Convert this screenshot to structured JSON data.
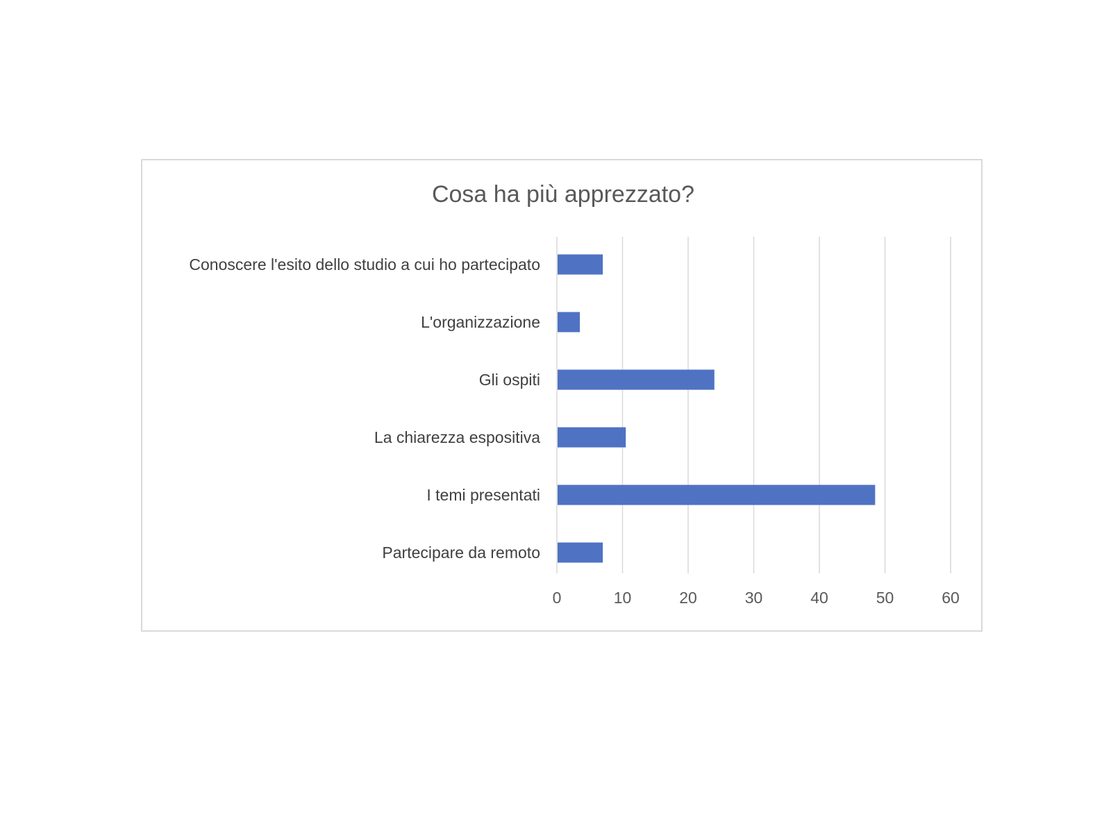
{
  "chart_data": {
    "type": "bar",
    "orientation": "horizontal",
    "title": "Cosa ha più apprezzato?",
    "categories": [
      "Conoscere l'esito dello studio a cui ho partecipato",
      "L'organizzazione",
      "Gli ospiti",
      "La chiarezza espositiva",
      "I temi presentati",
      "Partecipare da remoto"
    ],
    "values": [
      7,
      3.5,
      24,
      10.5,
      48.5,
      7
    ],
    "xlim": [
      0,
      60
    ],
    "xticks": [
      0,
      10,
      20,
      30,
      40,
      50,
      60
    ],
    "xtick_labels": [
      "0",
      "10",
      "20",
      "30",
      "40",
      "50",
      "60"
    ],
    "grid": true,
    "legend": "none",
    "colors": {
      "bar": "#4f72c3",
      "grid": "#d9d9d9",
      "frame": "#d9d9d9",
      "title": "#595959",
      "label": "#404040"
    }
  }
}
